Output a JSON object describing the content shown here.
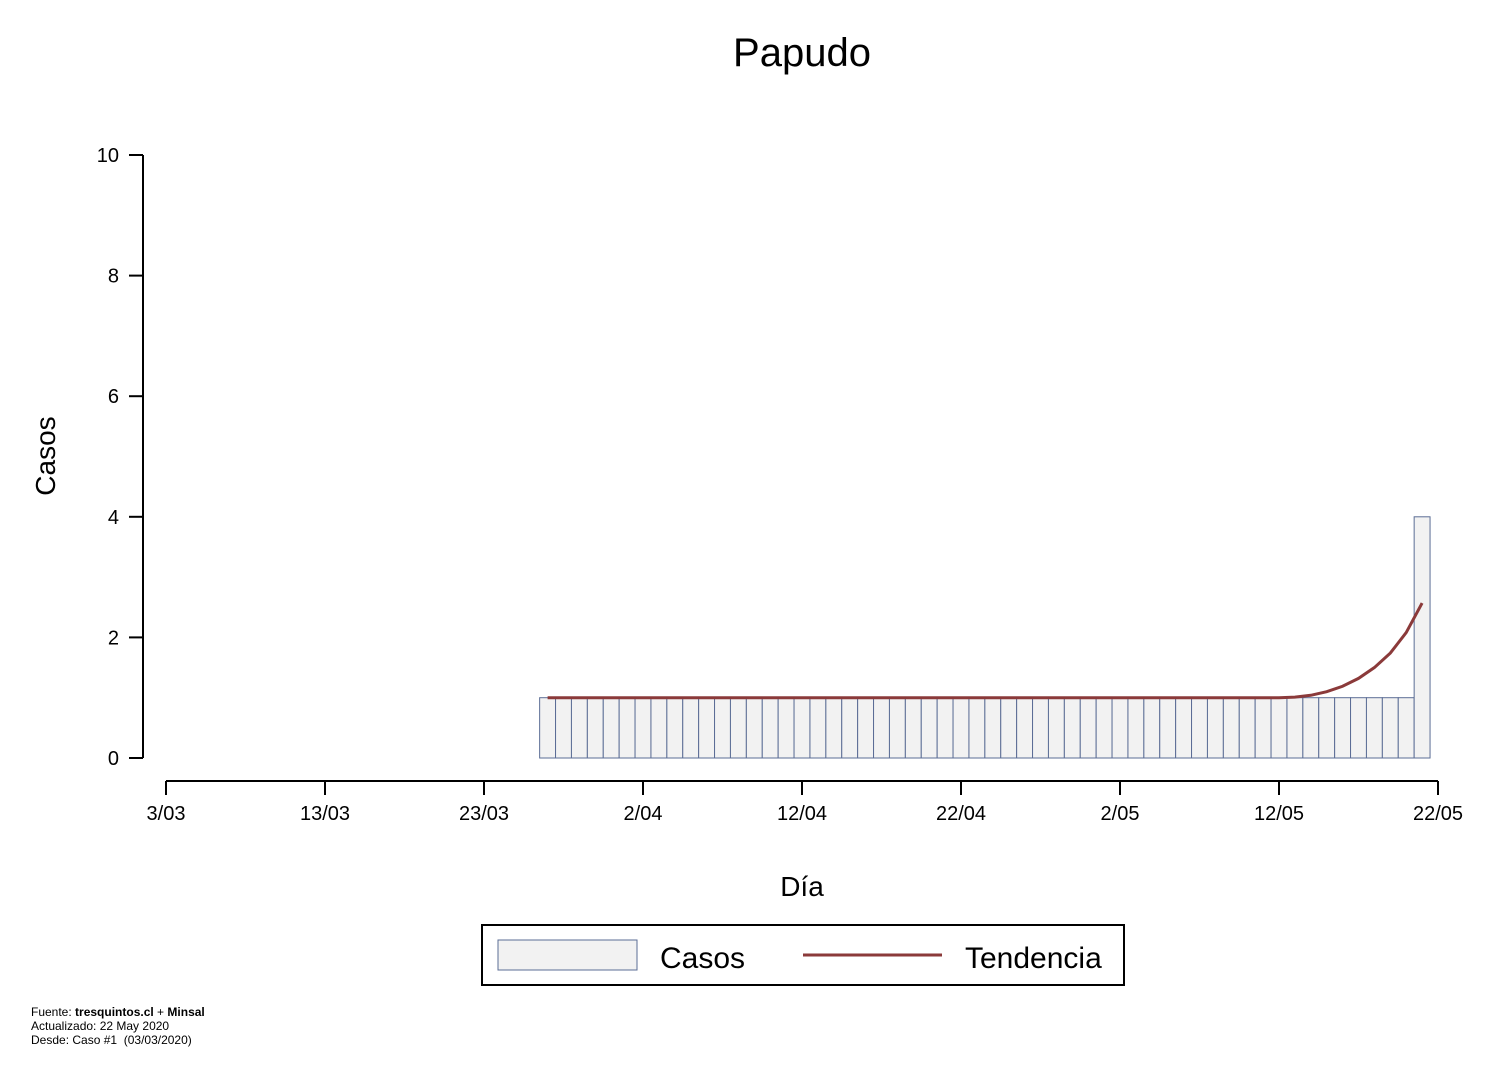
{
  "chart_data": {
    "type": "bar",
    "title": "Papudo",
    "xlabel": "Día",
    "ylabel": "Casos",
    "ylim": [
      0,
      10
    ],
    "yticks": [
      0,
      2,
      4,
      6,
      8,
      10
    ],
    "xtick_labels": [
      "3/03",
      "13/03",
      "23/03",
      "2/04",
      "12/04",
      "22/04",
      "2/05",
      "12/05",
      "22/05"
    ],
    "x_start": "3/03",
    "bar_start": "27/03",
    "series": [
      {
        "name": "Casos",
        "values": [
          1,
          1,
          1,
          1,
          1,
          1,
          1,
          1,
          1,
          1,
          1,
          1,
          1,
          1,
          1,
          1,
          1,
          1,
          1,
          1,
          1,
          1,
          1,
          1,
          1,
          1,
          1,
          1,
          1,
          1,
          1,
          1,
          1,
          1,
          1,
          1,
          1,
          1,
          1,
          1,
          1,
          1,
          1,
          1,
          1,
          1,
          1,
          1,
          1,
          1,
          1,
          1,
          1,
          1,
          1,
          4
        ]
      },
      {
        "name": "Tendencia",
        "values": [
          1,
          1,
          1,
          1,
          1,
          1,
          1,
          1,
          1,
          1,
          1,
          1,
          1,
          1,
          1,
          1,
          1,
          1,
          1,
          1,
          1,
          1,
          1,
          1,
          1,
          1,
          1,
          1,
          1,
          1,
          1,
          1,
          1,
          1,
          1,
          1,
          1,
          1,
          1,
          1,
          1,
          1,
          1,
          1,
          1,
          1,
          1,
          1.01,
          1.04,
          1.1,
          1.19,
          1.32,
          1.5,
          1.74,
          2.08,
          2.57
        ]
      }
    ],
    "legend": {
      "position": "bottom-center",
      "items": [
        "Casos",
        "Tendencia"
      ]
    },
    "colors": {
      "bar_fill": "#f2f2f2",
      "bar_stroke": "#5b6d95",
      "trend": "#8b3a3a"
    },
    "grid": false
  },
  "footer": {
    "fuente_prefix": "Fuente: ",
    "fuente_site": "tresquintos.cl",
    "fuente_plus": " + ",
    "fuente_minsal": "Minsal",
    "actualizado": "Actualizado: 22 May 2020",
    "desde": "Desde: Caso #1  (03/03/2020)"
  }
}
